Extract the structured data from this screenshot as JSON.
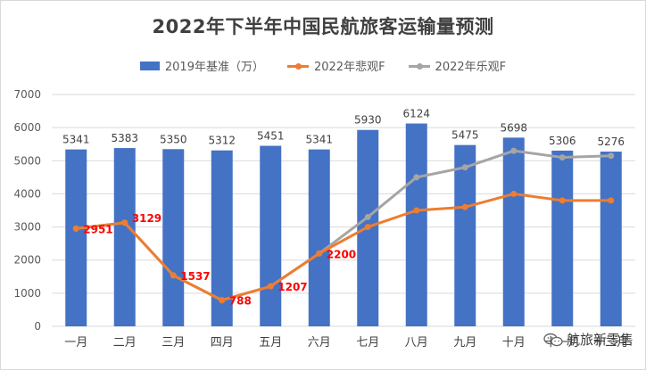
{
  "chart_data": {
    "type": "bar",
    "title": "2022年下半年中国民航旅客运输量预测",
    "categories": [
      "一月",
      "二月",
      "三月",
      "四月",
      "五月",
      "六月",
      "七月",
      "八月",
      "九月",
      "十月",
      "十一月",
      "十二月"
    ],
    "ylim": [
      0,
      7000
    ],
    "yticks": [
      0,
      1000,
      2000,
      3000,
      4000,
      5000,
      6000,
      7000
    ],
    "grid": true,
    "legend_position": "top",
    "series": [
      {
        "name": "2019年基准（万）",
        "kind": "bar",
        "color": "#4472c4",
        "values": [
          5341,
          5383,
          5350,
          5312,
          5451,
          5341,
          5930,
          6124,
          5475,
          5698,
          5306,
          5276
        ],
        "labels_shown": true
      },
      {
        "name": "2022年悲观F",
        "kind": "line",
        "color": "#ed7d31",
        "values": [
          2951,
          3129,
          1537,
          788,
          1207,
          2200,
          3000,
          3500,
          3600,
          4000,
          3800,
          3800
        ],
        "labels_shown": false
      },
      {
        "name": "2022年乐观F",
        "kind": "line",
        "color": "#a5a5a5",
        "values": [
          2951,
          3129,
          1537,
          788,
          1207,
          2200,
          3300,
          4500,
          4800,
          5300,
          5100,
          5150
        ],
        "labels_shown": false
      }
    ],
    "annotations": {
      "color": "#ff0000",
      "points": [
        {
          "index": 0,
          "text": "2951"
        },
        {
          "index": 1,
          "text": "3129"
        },
        {
          "index": 2,
          "text": "1537"
        },
        {
          "index": 3,
          "text": "788"
        },
        {
          "index": 4,
          "text": "1207"
        },
        {
          "index": 5,
          "text": "2200"
        }
      ]
    }
  },
  "watermark": {
    "text": "航旅新零售",
    "icon": "wechat-icon"
  }
}
